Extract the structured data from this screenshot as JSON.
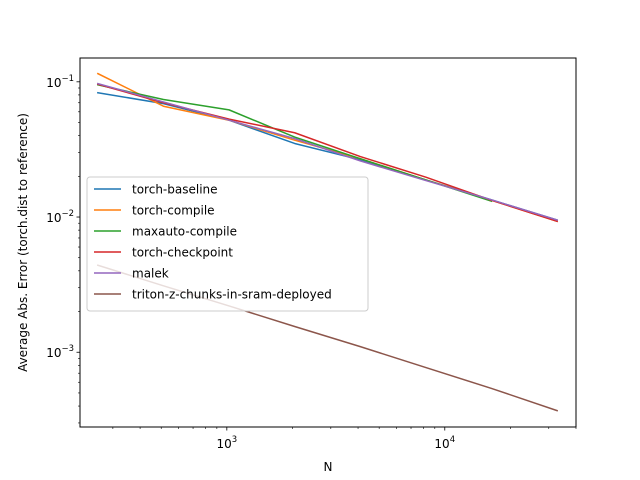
{
  "chart_data": {
    "type": "line",
    "title": "",
    "xlabel": "N",
    "ylabel": "Average Abs. Error (torch.dist to reference)",
    "xscale": "log",
    "yscale": "log",
    "xlim": [
      212,
      40000
    ],
    "ylim": [
      0.00028,
      0.15
    ],
    "x_ticks": [
      {
        "value": 1000,
        "base": "10",
        "exp": "3"
      },
      {
        "value": 10000,
        "base": "10",
        "exp": "4"
      }
    ],
    "y_ticks": [
      {
        "value": 0.001,
        "base": "10",
        "exp": "−3"
      },
      {
        "value": 0.01,
        "base": "10",
        "exp": "−2"
      },
      {
        "value": 0.1,
        "base": "10",
        "exp": "−1"
      }
    ],
    "grid": false,
    "legend_position": "center-left",
    "series": [
      {
        "name": "torch-baseline",
        "color": "#1f77b4",
        "x": [
          256,
          512,
          1024,
          2048,
          4096,
          8192,
          16384,
          32768
        ],
        "y": [
          0.083,
          0.069,
          0.052,
          0.035,
          0.0265,
          0.0188,
          0.0134,
          0.0095
        ]
      },
      {
        "name": "torch-compile",
        "color": "#ff7f0e",
        "x": [
          256,
          512,
          1024,
          2048,
          4096,
          8192,
          16384,
          32768
        ],
        "y": [
          0.115,
          0.066,
          0.052,
          0.037,
          0.027,
          0.0188,
          0.0133,
          0.0093
        ]
      },
      {
        "name": "maxauto-compile",
        "color": "#2ca02c",
        "x": [
          256,
          512,
          1024,
          2048,
          4096,
          8192,
          16384
        ],
        "y": [
          0.095,
          0.074,
          0.062,
          0.039,
          0.027,
          0.0188,
          0.0131
        ]
      },
      {
        "name": "torch-checkpoint",
        "color": "#d62728",
        "x": [
          256,
          512,
          1024,
          2048,
          4096,
          8192,
          16384,
          32768
        ],
        "y": [
          0.096,
          0.07,
          0.053,
          0.042,
          0.028,
          0.0197,
          0.0133,
          0.0093
        ]
      },
      {
        "name": "malek",
        "color": "#9467bd",
        "x": [
          256,
          512,
          1024,
          2048,
          4096,
          8192,
          16384,
          32768
        ],
        "y": [
          0.097,
          0.071,
          0.052,
          0.038,
          0.026,
          0.0186,
          0.0134,
          0.0095
        ]
      },
      {
        "name": "triton-z-chunks-in-sram-deployed",
        "color": "#8c564b",
        "x": [
          256,
          512,
          1024,
          2048,
          4096,
          8192,
          16384,
          32768
        ],
        "y": [
          0.0044,
          0.0031,
          0.0022,
          0.00155,
          0.0011,
          0.00077,
          0.00054,
          0.00037
        ]
      }
    ]
  }
}
